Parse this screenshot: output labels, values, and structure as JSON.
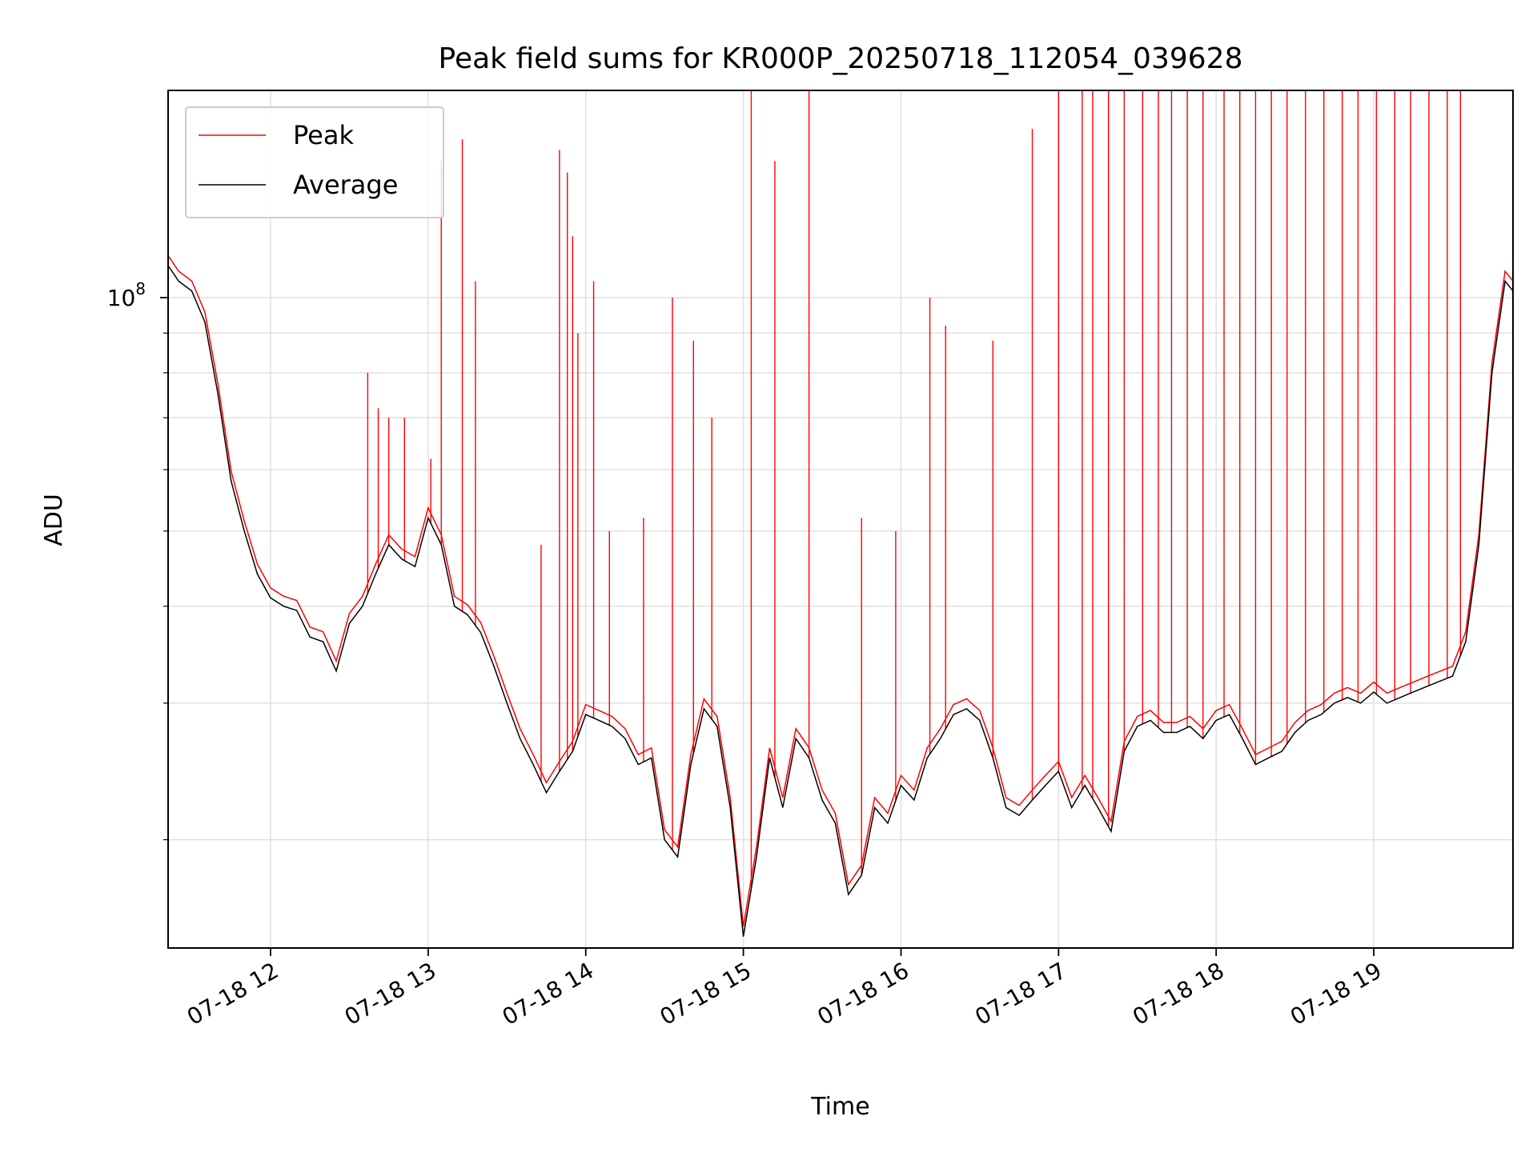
{
  "chart_data": {
    "type": "line",
    "title": "Peak field sums for KR000P_20250718_112054_039628",
    "xlabel": "Time",
    "ylabel": "ADU",
    "y_scale": "log",
    "ylim": [
      14500000,
      185000000
    ],
    "xlim": [
      "07-18 11:21",
      "07-18 19:53"
    ],
    "x_tick_labels": [
      "07-18 12",
      "07-18 13",
      "07-18 14",
      "07-18 15",
      "07-18 16",
      "07-18 17",
      "07-18 18",
      "07-18 19"
    ],
    "y_major_tick_label": {
      "base": "10",
      "exponent": "8",
      "value": 100000000
    },
    "grid": true,
    "legend": "top-left",
    "colors": {
      "peak": "#ff0000",
      "average": "#000000"
    },
    "series": [
      {
        "name": "Average",
        "x": [
          "07-18 11:21",
          "07-18 11:25",
          "07-18 11:30",
          "07-18 11:35",
          "07-18 11:40",
          "07-18 11:45",
          "07-18 11:50",
          "07-18 11:55",
          "07-18 12:00",
          "07-18 12:05",
          "07-18 12:10",
          "07-18 12:15",
          "07-18 12:20",
          "07-18 12:25",
          "07-18 12:30",
          "07-18 12:35",
          "07-18 12:40",
          "07-18 12:45",
          "07-18 12:50",
          "07-18 12:55",
          "07-18 13:00",
          "07-18 13:05",
          "07-18 13:10",
          "07-18 13:15",
          "07-18 13:20",
          "07-18 13:25",
          "07-18 13:30",
          "07-18 13:35",
          "07-18 13:40",
          "07-18 13:45",
          "07-18 13:50",
          "07-18 13:55",
          "07-18 14:00",
          "07-18 14:05",
          "07-18 14:10",
          "07-18 14:15",
          "07-18 14:20",
          "07-18 14:25",
          "07-18 14:30",
          "07-18 14:35",
          "07-18 14:40",
          "07-18 14:45",
          "07-18 14:50",
          "07-18 14:55",
          "07-18 15:00",
          "07-18 15:05",
          "07-18 15:10",
          "07-18 15:15",
          "07-18 15:20",
          "07-18 15:25",
          "07-18 15:30",
          "07-18 15:35",
          "07-18 15:40",
          "07-18 15:45",
          "07-18 15:50",
          "07-18 15:55",
          "07-18 16:00",
          "07-18 16:05",
          "07-18 16:10",
          "07-18 16:15",
          "07-18 16:20",
          "07-18 16:25",
          "07-18 16:30",
          "07-18 16:35",
          "07-18 16:40",
          "07-18 16:45",
          "07-18 16:50",
          "07-18 16:55",
          "07-18 17:00",
          "07-18 17:05",
          "07-18 17:10",
          "07-18 17:15",
          "07-18 17:20",
          "07-18 17:25",
          "07-18 17:30",
          "07-18 17:35",
          "07-18 17:40",
          "07-18 17:45",
          "07-18 17:50",
          "07-18 17:55",
          "07-18 18:00",
          "07-18 18:05",
          "07-18 18:10",
          "07-18 18:15",
          "07-18 18:20",
          "07-18 18:25",
          "07-18 18:30",
          "07-18 18:35",
          "07-18 18:40",
          "07-18 18:45",
          "07-18 18:50",
          "07-18 18:55",
          "07-18 19:00",
          "07-18 19:05",
          "07-18 19:10",
          "07-18 19:15",
          "07-18 19:20",
          "07-18 19:25",
          "07-18 19:30",
          "07-18 19:35",
          "07-18 19:40",
          "07-18 19:45",
          "07-18 19:50",
          "07-18 19:53"
        ],
        "y": [
          110000000,
          105000000,
          102000000,
          93000000,
          75000000,
          58000000,
          50000000,
          44000000,
          41000000,
          40000000,
          39500000,
          36500000,
          36000000,
          33000000,
          38000000,
          40000000,
          44000000,
          48000000,
          46000000,
          45000000,
          52000000,
          48000000,
          40000000,
          39000000,
          37000000,
          33500000,
          30000000,
          27000000,
          25000000,
          23000000,
          24500000,
          26000000,
          29000000,
          28500000,
          28000000,
          27000000,
          25000000,
          25500000,
          20000000,
          19000000,
          25000000,
          29500000,
          28000000,
          22000000,
          15000000,
          19000000,
          25500000,
          22000000,
          27000000,
          25500000,
          22500000,
          21000000,
          17000000,
          18000000,
          22000000,
          21000000,
          23500000,
          22500000,
          25500000,
          27000000,
          29000000,
          29500000,
          28500000,
          25500000,
          22000000,
          21500000,
          22500000,
          23500000,
          24500000,
          22000000,
          23500000,
          22000000,
          20500000,
          26000000,
          28000000,
          28500000,
          27500000,
          27500000,
          28000000,
          27000000,
          28500000,
          29000000,
          27000000,
          25000000,
          25500000,
          26000000,
          27500000,
          28500000,
          29000000,
          30000000,
          30500000,
          30000000,
          31000000,
          30000000,
          30500000,
          31000000,
          31500000,
          32000000,
          32500000,
          36000000,
          48000000,
          80000000,
          105000000,
          102000000
        ],
        "note_peak_spikes": ""
      },
      {
        "name": "Peak",
        "x": [
          "07-18 12:37",
          "07-18 12:41",
          "07-18 12:45",
          "07-18 12:51",
          "07-18 13:01",
          "07-18 13:05",
          "07-18 13:13",
          "07-18 13:18",
          "07-18 13:43",
          "07-18 13:50",
          "07-18 13:53",
          "07-18 13:55",
          "07-18 13:57",
          "07-18 14:03",
          "07-18 14:09",
          "07-18 14:22",
          "07-18 14:33",
          "07-18 14:41",
          "07-18 14:48",
          "07-18 15:03",
          "07-18 15:12",
          "07-18 15:25",
          "07-18 15:45",
          "07-18 15:58",
          "07-18 16:11",
          "07-18 16:17",
          "07-18 16:35",
          "07-18 16:50",
          "07-18 17:00",
          "07-18 17:09",
          "07-18 17:13",
          "07-18 17:19",
          "07-18 17:25",
          "07-18 17:32",
          "07-18 17:38",
          "07-18 17:43",
          "07-18 17:49",
          "07-18 17:55",
          "07-18 18:03",
          "07-18 18:09",
          "07-18 18:15",
          "07-18 18:21",
          "07-18 18:27",
          "07-18 18:34",
          "07-18 18:41",
          "07-18 18:48",
          "07-18 18:54",
          "07-18 19:01",
          "07-18 19:08",
          "07-18 19:14",
          "07-18 19:21",
          "07-18 19:28",
          "07-18 19:33"
        ],
        "y": [
          80000000,
          72000000,
          70000000,
          70000000,
          62000000,
          150000000,
          160000000,
          105000000,
          48000000,
          155000000,
          145000000,
          120000000,
          90000000,
          105000000,
          50000000,
          52000000,
          100000000,
          88000000,
          70000000,
          185000000,
          150000000,
          185000000,
          52000000,
          50000000,
          100000000,
          92000000,
          88000000,
          165000000,
          185000000,
          185000000,
          185000000,
          185000000,
          185000000,
          185000000,
          185000000,
          185000000,
          185000000,
          185000000,
          185000000,
          185000000,
          185000000,
          185000000,
          185000000,
          185000000,
          185000000,
          185000000,
          185000000,
          185000000,
          185000000,
          185000000,
          185000000,
          185000000,
          185000000
        ]
      }
    ]
  },
  "legend": {
    "peak_label": "Peak",
    "average_label": "Average"
  }
}
